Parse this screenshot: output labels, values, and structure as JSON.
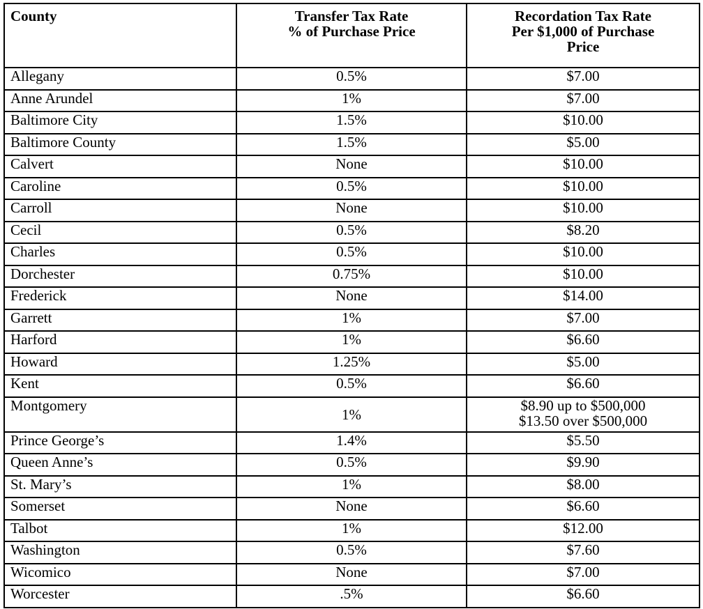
{
  "table": {
    "headers": [
      {
        "lines": [
          "County"
        ]
      },
      {
        "lines": [
          "Transfer Tax Rate",
          "% of Purchase Price"
        ]
      },
      {
        "lines": [
          "Recordation Tax Rate",
          "Per $1,000 of Purchase",
          "Price"
        ]
      }
    ],
    "rows": [
      {
        "county": "Allegany",
        "transfer": "0.5%",
        "recordation": [
          "$7.00"
        ]
      },
      {
        "county": "Anne Arundel",
        "transfer": "1%",
        "recordation": [
          "$7.00"
        ]
      },
      {
        "county": "Baltimore City",
        "transfer": "1.5%",
        "recordation": [
          "$10.00"
        ]
      },
      {
        "county": "Baltimore County",
        "transfer": "1.5%",
        "recordation": [
          "$5.00"
        ]
      },
      {
        "county": "Calvert",
        "transfer": "None",
        "recordation": [
          "$10.00"
        ]
      },
      {
        "county": "Caroline",
        "transfer": "0.5%",
        "recordation": [
          "$10.00"
        ]
      },
      {
        "county": "Carroll",
        "transfer": "None",
        "recordation": [
          "$10.00"
        ]
      },
      {
        "county": "Cecil",
        "transfer": "0.5%",
        "recordation": [
          "$8.20"
        ]
      },
      {
        "county": "Charles",
        "transfer": "0.5%",
        "recordation": [
          "$10.00"
        ]
      },
      {
        "county": "Dorchester",
        "transfer": "0.75%",
        "recordation": [
          "$10.00"
        ]
      },
      {
        "county": "Frederick",
        "transfer": "None",
        "recordation": [
          "$14.00"
        ]
      },
      {
        "county": "Garrett",
        "transfer": "1%",
        "recordation": [
          "$7.00"
        ]
      },
      {
        "county": "Harford",
        "transfer": "1%",
        "recordation": [
          "$6.60"
        ]
      },
      {
        "county": "Howard",
        "transfer": "1.25%",
        "recordation": [
          "$5.00"
        ]
      },
      {
        "county": "Kent",
        "transfer": "0.5%",
        "recordation": [
          "$6.60"
        ]
      },
      {
        "county": "Montgomery",
        "transfer": "1%",
        "recordation": [
          "$8.90 up to $500,000",
          "$13.50 over $500,000"
        ]
      },
      {
        "county": "Prince George’s",
        "transfer": "1.4%",
        "recordation": [
          "$5.50"
        ]
      },
      {
        "county": "Queen Anne’s",
        "transfer": "0.5%",
        "recordation": [
          "$9.90"
        ]
      },
      {
        "county": "St. Mary’s",
        "transfer": "1%",
        "recordation": [
          "$8.00"
        ]
      },
      {
        "county": "Somerset",
        "transfer": "None",
        "recordation": [
          "$6.60"
        ]
      },
      {
        "county": "Talbot",
        "transfer": "1%",
        "recordation": [
          "$12.00"
        ]
      },
      {
        "county": "Washington",
        "transfer": "0.5%",
        "recordation": [
          "$7.60"
        ]
      },
      {
        "county": "Wicomico",
        "transfer": "None",
        "recordation": [
          "$7.00"
        ]
      },
      {
        "county": "Worcester",
        "transfer": ".5%",
        "recordation": [
          "$6.60"
        ]
      }
    ]
  }
}
